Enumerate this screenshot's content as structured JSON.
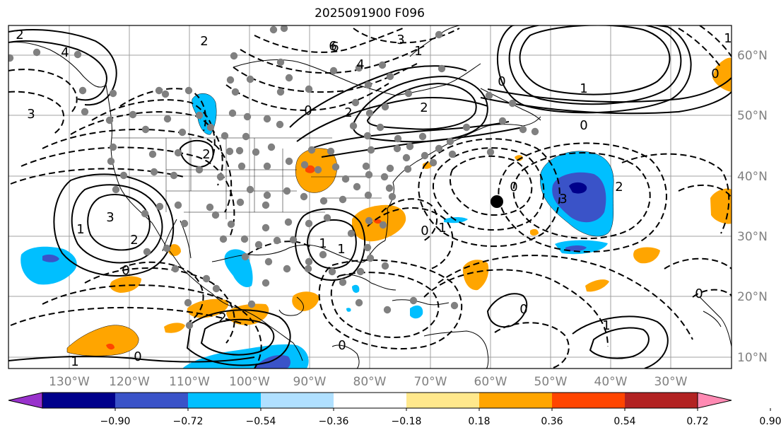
{
  "title": "2025091900 F096",
  "map": {
    "type": "contour map",
    "lon_range": [
      -140,
      -20
    ],
    "lat_range": [
      7,
      65
    ],
    "lon_ticks": [
      "130°W",
      "120°W",
      "110°W",
      "100°W",
      "90°W",
      "80°W",
      "70°W",
      "60°W",
      "50°W",
      "40°W",
      "30°W"
    ],
    "lat_ticks": [
      "10°N",
      "20°N",
      "30°N",
      "40°N",
      "50°N",
      "60°N"
    ],
    "contour_labels": [
      "2",
      "4",
      "6",
      "0",
      "0",
      "2",
      "3",
      "1",
      "2",
      "0",
      "3",
      "1",
      "2",
      "0",
      "1",
      "0",
      "1",
      "2",
      "1",
      "0",
      "3",
      "2",
      "0",
      "1",
      "0",
      "1",
      "0",
      "1",
      "0",
      "6",
      "4",
      "3",
      "2",
      "0",
      "1",
      "2"
    ],
    "colors": {
      "coast": "#000000",
      "contour": "#000000",
      "grid": "#a0a0a0",
      "station_dot": "#808080",
      "marker": "#000000"
    }
  },
  "colorbar": {
    "ticks": [
      "−0.90",
      "−0.72",
      "−0.54",
      "−0.36",
      "−0.18",
      "0.18",
      "0.36",
      "0.54",
      "0.72",
      "0.90"
    ],
    "colors": [
      "#9932cc",
      "#00008b",
      "#3a53c8",
      "#00bfff",
      "#b0e0ff",
      "#ffffff",
      "#ffe88c",
      "#ffa500",
      "#ff4500",
      "#b22222",
      "#ff8ab3"
    ]
  }
}
